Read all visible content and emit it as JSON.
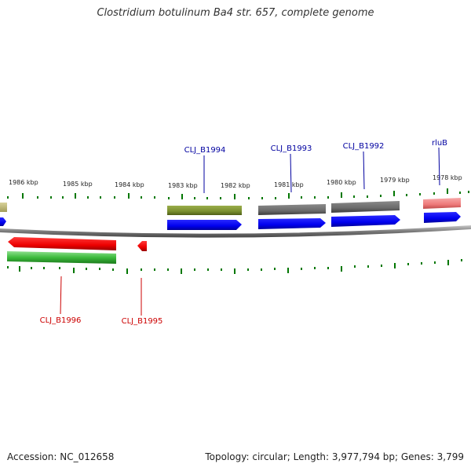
{
  "title": "Clostridium botulinum Ba4 str. 657, complete genome",
  "footer": {
    "accession": "Accession: NC_012658",
    "topology": "Topology: circular; Length: 3,977,794 bp; Genes: 3,799"
  },
  "colors": {
    "forward_label": "#0000a0",
    "reverse_label": "#cc0000",
    "tick": "#007700",
    "backbone": "#808080"
  },
  "scale": {
    "unit": "kbp",
    "labels": [
      {
        "kbp": 1986,
        "text": "1986 kbp"
      },
      {
        "kbp": 1985,
        "text": "1985 kbp"
      },
      {
        "kbp": 1984,
        "text": "1984 kbp"
      },
      {
        "kbp": 1983,
        "text": "1983 kbp"
      },
      {
        "kbp": 1982,
        "text": "1982 kbp"
      },
      {
        "kbp": 1981,
        "text": "1981 kbp"
      },
      {
        "kbp": 1980,
        "text": "1980 kbp"
      },
      {
        "kbp": 1979,
        "text": "1979 kbp"
      },
      {
        "kbp": 1978,
        "text": "1978 kbp"
      }
    ]
  },
  "genes": [
    {
      "name": "CLJ_B1994",
      "strand": "forward"
    },
    {
      "name": "CLJ_B1993",
      "strand": "forward"
    },
    {
      "name": "CLJ_B1992",
      "strand": "forward"
    },
    {
      "name": "rluB",
      "strand": "forward"
    },
    {
      "name": "CLJ_B1996",
      "strand": "reverse"
    },
    {
      "name": "CLJ_B1995",
      "strand": "reverse"
    }
  ]
}
